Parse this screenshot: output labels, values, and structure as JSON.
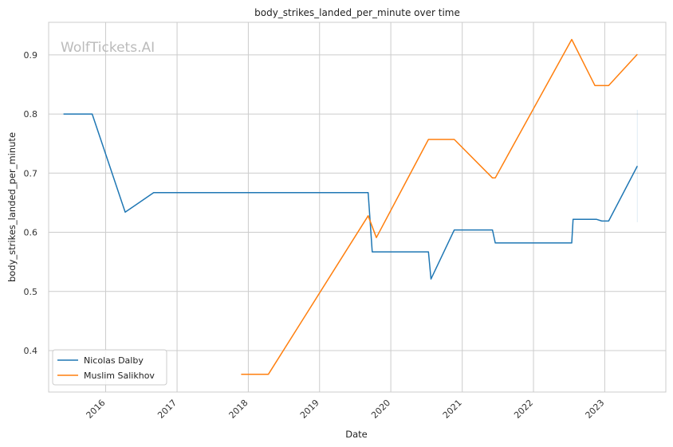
{
  "chart_data": {
    "type": "line",
    "title": "body_strikes_landed_per_minute over time",
    "xlabel": "Date",
    "ylabel": "body_strikes_landed_per_minute",
    "watermark": "WolfTickets.AI",
    "x_ticks": [
      "2016",
      "2017",
      "2018",
      "2019",
      "2020",
      "2021",
      "2022",
      "2023"
    ],
    "y_ticks": [
      "0.4",
      "0.5",
      "0.6",
      "0.7",
      "0.8",
      "0.9"
    ],
    "xlim": [
      "2015-03-15",
      "2023-11-10"
    ],
    "ylim": [
      0.33,
      0.955
    ],
    "grid": true,
    "legend_position": "bottom-left",
    "colors": {
      "Nicolas Dalby": "#1f77b4",
      "Muslim Salikhov": "#ff7f0e",
      "grid": "#cccccc"
    },
    "series": [
      {
        "name": "Nicolas Dalby",
        "points": [
          [
            "2015-05-30",
            0.8
          ],
          [
            "2015-10-24",
            0.8
          ],
          [
            "2016-04-10",
            0.634
          ],
          [
            "2016-09-03",
            0.667
          ],
          [
            "2019-09-07",
            0.667
          ],
          [
            "2019-09-28",
            0.567
          ],
          [
            "2020-07-12",
            0.567
          ],
          [
            "2020-07-25",
            0.521
          ],
          [
            "2020-11-21",
            0.604
          ],
          [
            "2021-06-05",
            0.604
          ],
          [
            "2021-06-19",
            0.582
          ],
          [
            "2022-07-16",
            0.582
          ],
          [
            "2022-07-23",
            0.622
          ],
          [
            "2022-11-19",
            0.622
          ],
          [
            "2022-12-17",
            0.619
          ],
          [
            "2023-01-21",
            0.619
          ],
          [
            "2023-06-17",
            0.712
          ]
        ]
      },
      {
        "name": "Muslim Salikhov",
        "points": [
          [
            "2017-11-25",
            0.36
          ],
          [
            "2018-04-14",
            0.36
          ],
          [
            "2019-09-07",
            0.628
          ],
          [
            "2019-10-19",
            0.591
          ],
          [
            "2020-07-12",
            0.757
          ],
          [
            "2020-11-21",
            0.757
          ],
          [
            "2021-06-05",
            0.692
          ],
          [
            "2021-06-19",
            0.692
          ],
          [
            "2022-07-16",
            0.926
          ],
          [
            "2022-11-12",
            0.848
          ],
          [
            "2023-01-21",
            0.848
          ],
          [
            "2023-06-17",
            0.901
          ]
        ]
      }
    ]
  }
}
